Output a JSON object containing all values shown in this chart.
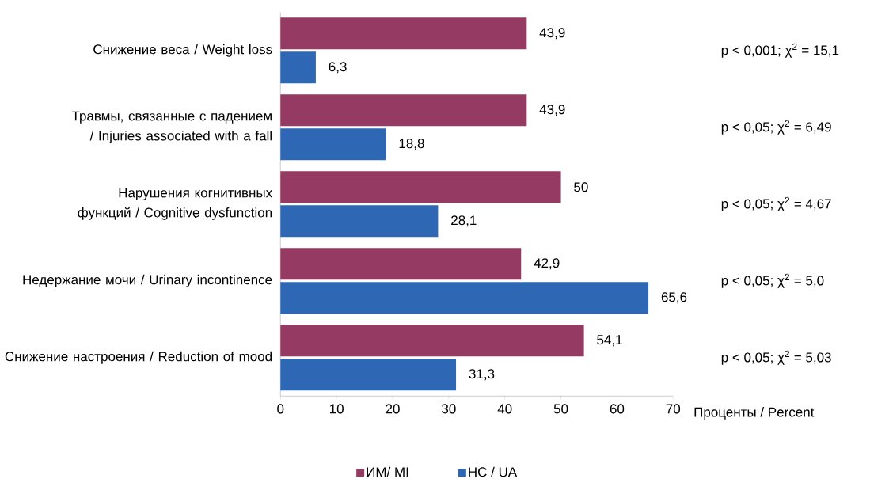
{
  "chart_data": {
    "type": "bar",
    "orientation": "horizontal",
    "categories": [
      "Снижение веса / Weight loss",
      "Травмы, связанные с падением / Injuries associated with a fall",
      "Нарушения когнитивных функций / Cognitive dysfunction",
      "Недержание мочи / Urinary incontinence",
      "Снижение настроения / Reduction of mood"
    ],
    "series": [
      {
        "name": "ИМ/ MI",
        "color": "#943a63",
        "values": [
          43.9,
          43.9,
          50,
          42.9,
          54.1
        ],
        "value_labels": [
          "43,9",
          "43,9",
          "50",
          "42,9",
          "54,1"
        ]
      },
      {
        "name": "НС / UA",
        "color": "#2e67b4",
        "values": [
          6.3,
          18.8,
          28.1,
          65.6,
          31.3
        ],
        "value_labels": [
          "6,3",
          "18,8",
          "28,1",
          "65,6",
          "31,3"
        ]
      }
    ],
    "xlabel": "Проценты / Percent",
    "xlim": [
      0,
      70
    ],
    "xticks": [
      0,
      10,
      20,
      30,
      40,
      50,
      60,
      70
    ],
    "annotations": [
      "p < 0,001; χ$^{2}$ = 15,1",
      "p < 0,05; χ$^{2}$ = 6,49",
      "p < 0,05; χ$^{2}$ = 4,67",
      "p < 0,05; χ$^{2}$ = 5,0",
      "p < 0,05; χ$^{2}$ = 5,03"
    ],
    "legend": "bottom",
    "grid": false
  }
}
